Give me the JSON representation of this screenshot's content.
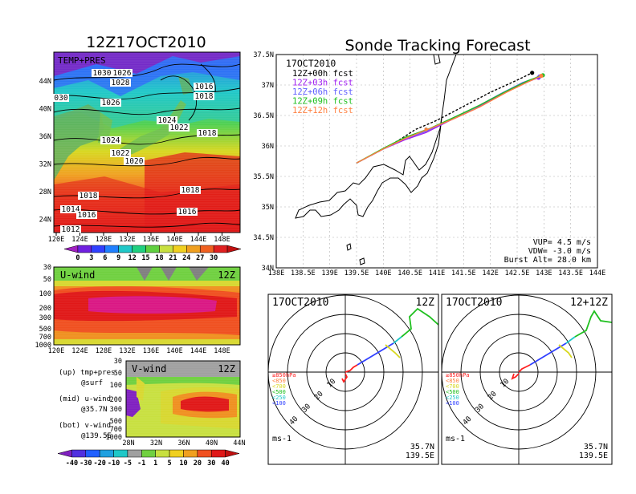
{
  "left_title": "12Z17OCT2010",
  "right_title": "Sonde Tracking Forecast",
  "temp_panel": {
    "label": "TEMP+PRES",
    "x_ticks": [
      "120E",
      "124E",
      "128E",
      "132E",
      "136E",
      "140E",
      "144E",
      "148E"
    ],
    "y_ticks": [
      "44N",
      "40N",
      "36N",
      "32N",
      "28N",
      "24N"
    ],
    "isobar_labels": [
      "1030",
      "1026",
      "1028",
      "030",
      "1026",
      "1016",
      "1018",
      "1024",
      "1022",
      "1024",
      "1022",
      "1018",
      "1020",
      "1018",
      "1018",
      "1016",
      "1014",
      "1016",
      "1012"
    ],
    "colorbar_ticks": [
      "0",
      "3",
      "6",
      "9",
      "12",
      "15",
      "18",
      "21",
      "24",
      "27",
      "30"
    ]
  },
  "uwind_panel": {
    "label": "U-wind",
    "time": "12Z",
    "y_ticks": [
      "30",
      "50",
      "100",
      "200",
      "300",
      "500",
      "700",
      "1000"
    ],
    "x_ticks": [
      "120E",
      "124E",
      "128E",
      "132E",
      "136E",
      "140E",
      "144E",
      "148E"
    ]
  },
  "vwind_panel": {
    "label": "V-wind",
    "time": "12Z",
    "y_ticks": [
      "30",
      "50",
      "100",
      "200",
      "300",
      "500",
      "700",
      "1000"
    ],
    "x_ticks": [
      "28N",
      "32N",
      "36N",
      "40N",
      "44N"
    ],
    "colorbar_ticks": [
      "-40",
      "-30",
      "-20",
      "-10",
      "-5",
      "-1",
      "1",
      "5",
      "10",
      "20",
      "30",
      "40"
    ]
  },
  "notes": {
    "up": "(up) tmp+pres",
    "up2": "@surf",
    "mid": "(mid) u-wind",
    "mid2": "@35.7N",
    "bot": "(bot) v-wind",
    "bot2": "@139.5E"
  },
  "track_panel": {
    "date": "17OCT2010",
    "legend": [
      {
        "label": "12Z+00h fcst",
        "color": "#000000"
      },
      {
        "label": "12Z+03h fcst",
        "color": "#a020f0"
      },
      {
        "label": "12Z+06h fcst",
        "color": "#6060ff"
      },
      {
        "label": "12Z+09h fcst",
        "color": "#20c020"
      },
      {
        "label": "12Z+12h fcst",
        "color": "#ff8040"
      }
    ],
    "x_ticks": [
      "138E",
      "138.5E",
      "139E",
      "139.5E",
      "140E",
      "140.5E",
      "141E",
      "141.5E",
      "142E",
      "142.5E",
      "143E",
      "143.5E",
      "144E"
    ],
    "y_ticks": [
      "37.5N",
      "37N",
      "36.5N",
      "36N",
      "35.5N",
      "35N",
      "34.5N",
      "34N"
    ],
    "info": [
      "VUP= 4.5 m/s",
      "VDW= -3.0 m/s",
      "Burst Alt= 28.0 km"
    ]
  },
  "polar1": {
    "date": "17OCT2010",
    "time": "12Z",
    "ring_labels": [
      "10",
      "20",
      "30",
      "40"
    ],
    "levels": [
      "≥850hPa",
      "<850",
      "<700",
      "<500",
      "<250",
      "<100"
    ],
    "units": "ms-1",
    "lat": "35.7N",
    "lon": "139.5E"
  },
  "polar2": {
    "date": "17OCT2010",
    "time": "12+12Z",
    "ring_labels": [
      "10",
      "20",
      "30",
      "40"
    ],
    "levels": [
      "≥850hPa",
      "<850",
      "<700",
      "<500",
      "<250",
      "<100"
    ],
    "units": "ms-1",
    "lat": "35.7N",
    "lon": "139.5E"
  },
  "chart_data": [
    {
      "type": "line",
      "title": "Sonde Tracking Forecast",
      "xlim": [
        138,
        144
      ],
      "ylim": [
        34,
        37.5
      ],
      "series": [
        {
          "name": "12Z+00h fcst",
          "color": "#000000",
          "x": [
            139.5,
            140.0,
            140.3,
            140.6,
            141.0,
            141.5,
            142.0,
            142.5,
            142.78
          ],
          "y": [
            35.72,
            35.95,
            36.1,
            36.27,
            36.42,
            36.65,
            36.88,
            37.08,
            37.2
          ]
        },
        {
          "name": "12Z+03h fcst",
          "color": "#a020f0",
          "x": [
            139.5,
            140.0,
            140.4,
            140.8,
            141.2,
            141.7,
            142.2,
            142.6,
            142.9
          ],
          "y": [
            35.72,
            35.95,
            36.1,
            36.22,
            36.4,
            36.6,
            36.85,
            37.02,
            37.12
          ]
        },
        {
          "name": "12Z+06h fcst",
          "color": "#6060ff",
          "x": [
            139.5,
            140.0,
            140.4,
            140.8,
            141.2,
            141.7,
            142.2,
            142.6,
            142.92
          ],
          "y": [
            35.72,
            35.95,
            36.12,
            36.24,
            36.42,
            36.62,
            36.86,
            37.04,
            37.14
          ]
        },
        {
          "name": "12Z+09h fcst",
          "color": "#20c020",
          "x": [
            139.5,
            140.0,
            140.4,
            140.85,
            141.3,
            141.8,
            142.3,
            142.7,
            142.98
          ],
          "y": [
            35.72,
            35.96,
            36.14,
            36.28,
            36.46,
            36.67,
            36.9,
            37.07,
            37.16
          ]
        },
        {
          "name": "12Z+12h fcst",
          "color": "#ff8040",
          "x": [
            139.5,
            140.0,
            140.4,
            140.8,
            141.3,
            141.8,
            142.3,
            142.7,
            142.95
          ],
          "y": [
            35.72,
            35.95,
            36.12,
            36.26,
            36.44,
            36.64,
            36.88,
            37.05,
            37.15
          ]
        }
      ]
    }
  ]
}
